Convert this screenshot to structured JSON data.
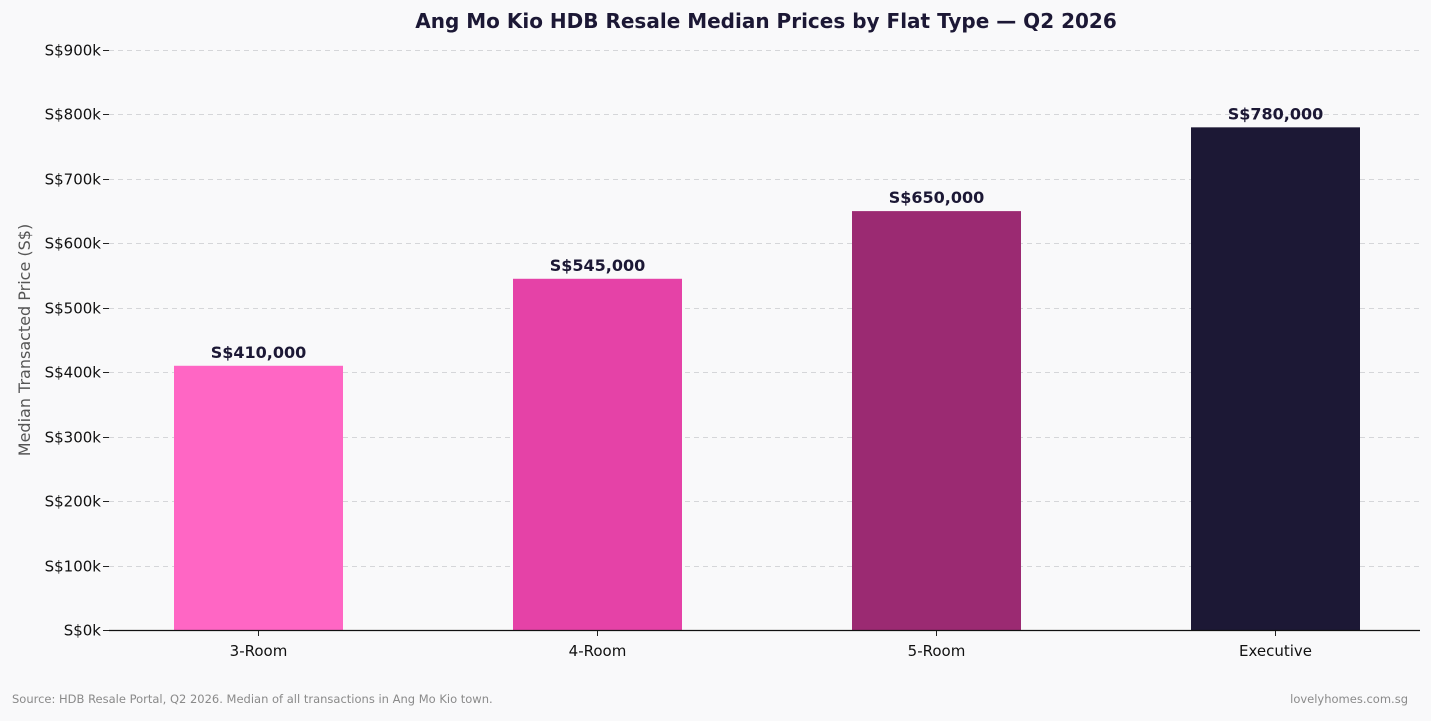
{
  "chart_data": {
    "type": "bar",
    "title": "Ang Mo Kio HDB Resale Median Prices by Flat Type — Q2 2026",
    "xlabel": "",
    "ylabel": "Median Transacted Price (S$)",
    "categories": [
      "3-Room",
      "4-Room",
      "5-Room",
      "Executive"
    ],
    "values": [
      410000,
      545000,
      650000,
      780000
    ],
    "value_labels": [
      "S$410,000",
      "S$545,000",
      "S$650,000",
      "S$780,000"
    ],
    "bar_colors": [
      "#ff66c4",
      "#e542a7",
      "#9b2a72",
      "#1c1835"
    ],
    "ylim": [
      0,
      900000
    ],
    "yticks": [
      0,
      100000,
      200000,
      300000,
      400000,
      500000,
      600000,
      700000,
      800000,
      900000
    ],
    "ytick_labels": [
      "S$0k",
      "S$100k",
      "S$200k",
      "S$300k",
      "S$400k",
      "S$500k",
      "S$600k",
      "S$700k",
      "S$800k",
      "S$900k"
    ],
    "grid": true,
    "legend": "none"
  },
  "footer": {
    "source": "Source: HDB Resale Portal, Q2 2026. Median of all transactions in Ang Mo Kio town.",
    "credit": "lovelyhomes.com.sg"
  }
}
